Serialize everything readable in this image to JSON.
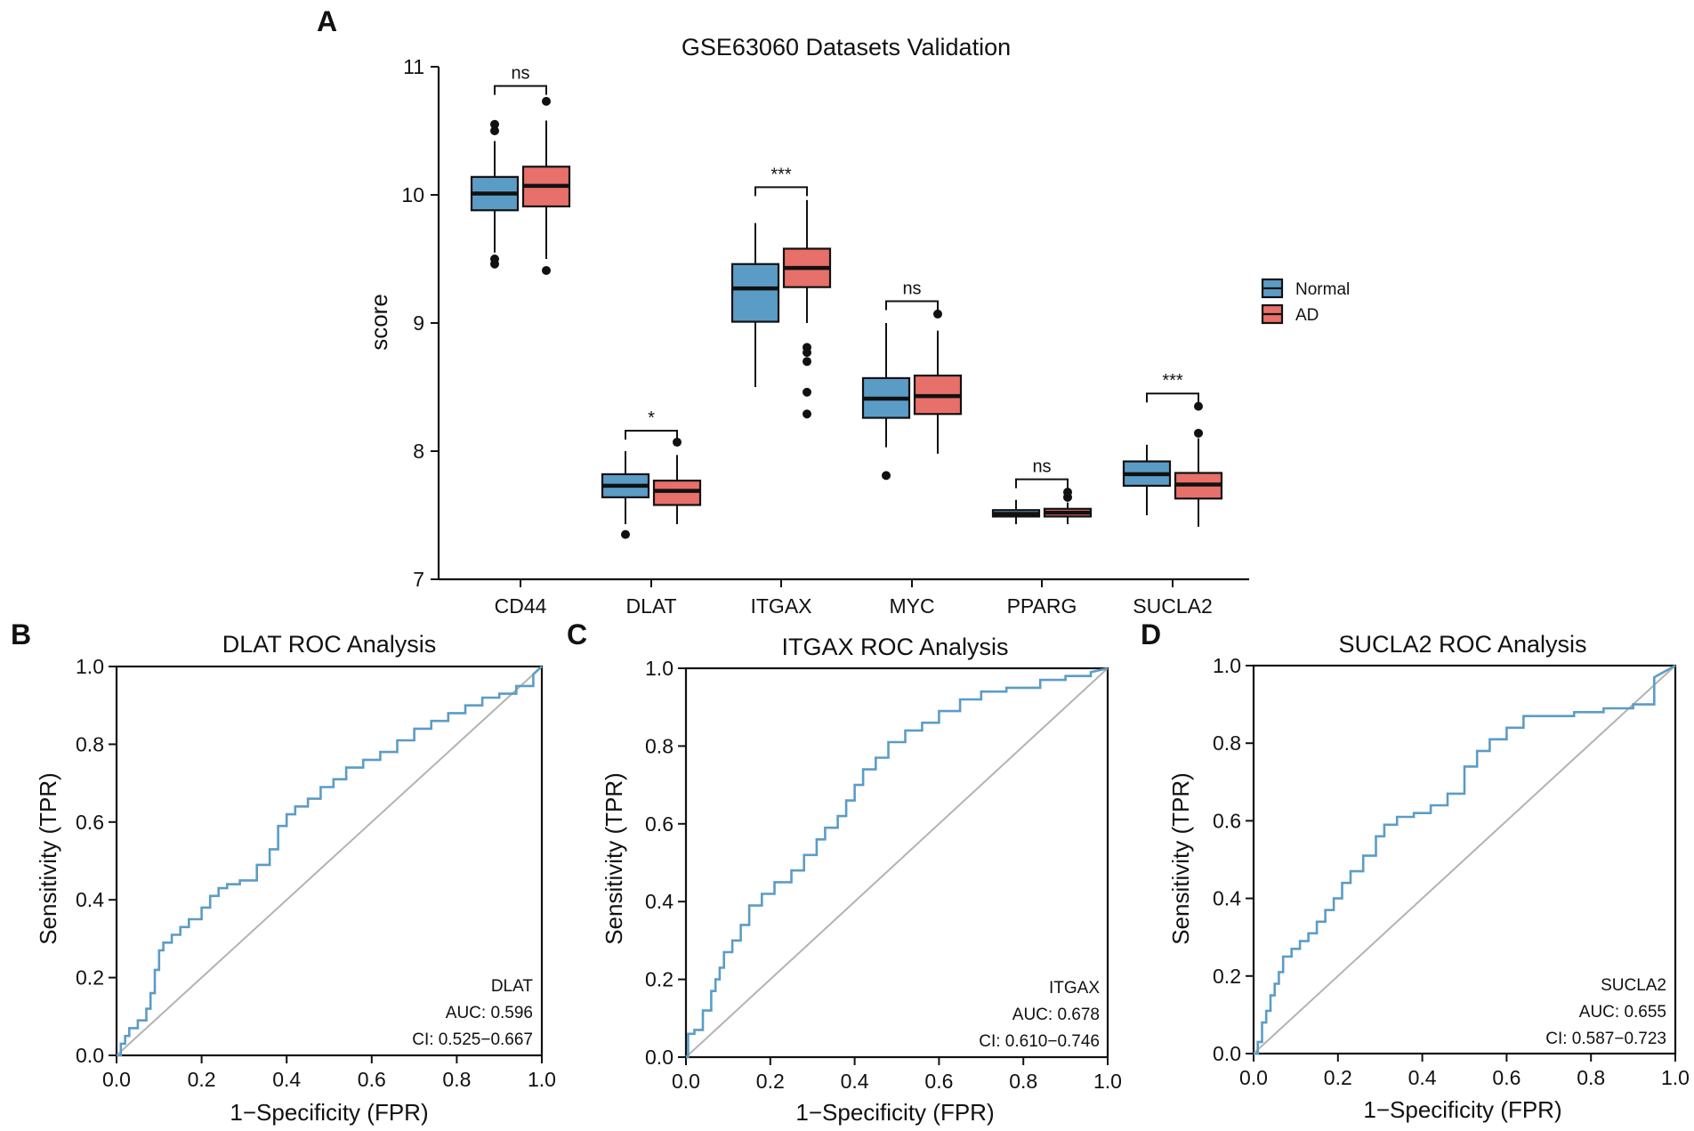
{
  "panels": {
    "A": "A",
    "B": "B",
    "C": "C",
    "D": "D"
  },
  "colors": {
    "normal": "#5b9cc7",
    "ad": "#e8706a",
    "roc_line": "#5b9cc7",
    "diagonal": "#b3b3b3",
    "axis": "#111111"
  },
  "chart_data": [
    {
      "type": "box",
      "panel": "A",
      "title": "GSE63060 Datasets Validation",
      "xlabel": "",
      "ylabel": "score",
      "ylim": [
        7,
        11
      ],
      "yticks": [
        7,
        8,
        9,
        10,
        11
      ],
      "categories": [
        "CD44",
        "DLAT",
        "ITGAX",
        "MYC",
        "PPARG",
        "SUCLA2"
      ],
      "legend": [
        "Normal",
        "AD"
      ],
      "legend_position": "right",
      "series": [
        {
          "name": "Normal",
          "boxes": [
            {
              "q1": 9.88,
              "median": 10.01,
              "q3": 10.14,
              "whisker_low": 9.55,
              "whisker_high": 10.42,
              "outliers": [
                10.55,
                10.5,
                9.5,
                9.46
              ]
            },
            {
              "q1": 7.64,
              "median": 7.73,
              "q3": 7.82,
              "whisker_low": 7.43,
              "whisker_high": 8.0,
              "outliers": [
                7.35
              ]
            },
            {
              "q1": 9.01,
              "median": 9.27,
              "q3": 9.46,
              "whisker_low": 8.5,
              "whisker_high": 9.78,
              "outliers": []
            },
            {
              "q1": 8.26,
              "median": 8.41,
              "q3": 8.57,
              "whisker_low": 8.03,
              "whisker_high": 9.0,
              "outliers": [
                7.81
              ]
            },
            {
              "q1": 7.49,
              "median": 7.51,
              "q3": 7.54,
              "whisker_low": 7.43,
              "whisker_high": 7.62,
              "outliers": []
            },
            {
              "q1": 7.73,
              "median": 7.82,
              "q3": 7.92,
              "whisker_low": 7.5,
              "whisker_high": 8.05,
              "outliers": []
            }
          ]
        },
        {
          "name": "AD",
          "boxes": [
            {
              "q1": 9.91,
              "median": 10.07,
              "q3": 10.22,
              "whisker_low": 9.5,
              "whisker_high": 10.58,
              "outliers": [
                10.73,
                9.41
              ]
            },
            {
              "q1": 7.58,
              "median": 7.69,
              "q3": 7.77,
              "whisker_low": 7.43,
              "whisker_high": 7.97,
              "outliers": [
                8.07
              ]
            },
            {
              "q1": 9.28,
              "median": 9.43,
              "q3": 9.58,
              "whisker_low": 9.0,
              "whisker_high": 9.96,
              "outliers": [
                8.81,
                8.77,
                8.7,
                8.46,
                8.29
              ]
            },
            {
              "q1": 8.29,
              "median": 8.43,
              "q3": 8.59,
              "whisker_low": 7.98,
              "whisker_high": 8.94,
              "outliers": [
                9.07
              ]
            },
            {
              "q1": 7.49,
              "median": 7.52,
              "q3": 7.55,
              "whisker_low": 7.43,
              "whisker_high": 7.6,
              "outliers": [
                7.64,
                7.68
              ]
            },
            {
              "q1": 7.63,
              "median": 7.74,
              "q3": 7.83,
              "whisker_low": 7.41,
              "whisker_high": 8.1,
              "outliers": [
                8.14,
                8.35
              ]
            }
          ]
        }
      ],
      "significance": [
        {
          "category": "CD44",
          "label": "ns",
          "y": 10.85
        },
        {
          "category": "DLAT",
          "label": "*",
          "y": 8.16
        },
        {
          "category": "ITGAX",
          "label": "***",
          "y": 10.06
        },
        {
          "category": "MYC",
          "label": "ns",
          "y": 9.17
        },
        {
          "category": "PPARG",
          "label": "ns",
          "y": 7.78
        },
        {
          "category": "SUCLA2",
          "label": "***",
          "y": 8.45
        }
      ]
    },
    {
      "type": "line",
      "panel": "B",
      "title": "DLAT ROC Analysis",
      "xlabel": "1−Specificity (FPR)",
      "ylabel": "Sensitivity (TPR)",
      "xlim": [
        0,
        1
      ],
      "ylim": [
        0,
        1
      ],
      "xticks": [
        "0.0",
        "0.2",
        "0.4",
        "0.6",
        "0.8",
        "1.0"
      ],
      "yticks": [
        "0.0",
        "0.2",
        "0.4",
        "0.6",
        "0.8",
        "1.0"
      ],
      "annotation": [
        "DLAT",
        "AUC: 0.596",
        "CI: 0.525−0.667"
      ],
      "auc": 0.596,
      "ci": [
        0.525,
        0.667
      ],
      "x": [
        0,
        0.01,
        0.01,
        0.02,
        0.02,
        0.03,
        0.03,
        0.05,
        0.05,
        0.07,
        0.07,
        0.08,
        0.08,
        0.09,
        0.09,
        0.1,
        0.1,
        0.11,
        0.11,
        0.13,
        0.13,
        0.15,
        0.15,
        0.17,
        0.17,
        0.2,
        0.2,
        0.22,
        0.22,
        0.24,
        0.24,
        0.26,
        0.26,
        0.29,
        0.29,
        0.33,
        0.33,
        0.36,
        0.36,
        0.38,
        0.38,
        0.4,
        0.4,
        0.42,
        0.42,
        0.45,
        0.45,
        0.48,
        0.48,
        0.51,
        0.51,
        0.54,
        0.54,
        0.58,
        0.58,
        0.62,
        0.62,
        0.66,
        0.66,
        0.7,
        0.7,
        0.74,
        0.74,
        0.78,
        0.78,
        0.82,
        0.82,
        0.86,
        0.86,
        0.9,
        0.9,
        0.94,
        0.94,
        0.98,
        0.98,
        1.0
      ],
      "y": [
        0,
        0,
        0.03,
        0.03,
        0.05,
        0.05,
        0.07,
        0.07,
        0.09,
        0.09,
        0.12,
        0.12,
        0.16,
        0.16,
        0.22,
        0.22,
        0.27,
        0.27,
        0.29,
        0.29,
        0.31,
        0.31,
        0.33,
        0.33,
        0.35,
        0.35,
        0.38,
        0.38,
        0.41,
        0.41,
        0.43,
        0.43,
        0.44,
        0.44,
        0.45,
        0.45,
        0.49,
        0.49,
        0.53,
        0.53,
        0.59,
        0.59,
        0.62,
        0.62,
        0.64,
        0.64,
        0.66,
        0.66,
        0.69,
        0.69,
        0.71,
        0.71,
        0.74,
        0.74,
        0.76,
        0.76,
        0.78,
        0.78,
        0.81,
        0.81,
        0.84,
        0.84,
        0.86,
        0.86,
        0.88,
        0.88,
        0.9,
        0.9,
        0.92,
        0.92,
        0.93,
        0.93,
        0.95,
        0.95,
        0.98,
        1.0
      ]
    },
    {
      "type": "line",
      "panel": "C",
      "title": "ITGAX ROC Analysis",
      "xlabel": "1−Specificity (FPR)",
      "ylabel": "Sensitivity (TPR)",
      "xlim": [
        0,
        1
      ],
      "ylim": [
        0,
        1
      ],
      "xticks": [
        "0.0",
        "0.2",
        "0.4",
        "0.6",
        "0.8",
        "1.0"
      ],
      "yticks": [
        "0.0",
        "0.2",
        "0.4",
        "0.6",
        "0.8",
        "1.0"
      ],
      "annotation": [
        "ITGAX",
        "AUC: 0.678",
        "CI: 0.610−0.746"
      ],
      "auc": 0.678,
      "ci": [
        0.61,
        0.746
      ],
      "x": [
        0,
        0.005,
        0.005,
        0.02,
        0.02,
        0.04,
        0.04,
        0.06,
        0.06,
        0.07,
        0.07,
        0.08,
        0.08,
        0.09,
        0.09,
        0.11,
        0.11,
        0.13,
        0.13,
        0.15,
        0.15,
        0.18,
        0.18,
        0.21,
        0.21,
        0.25,
        0.25,
        0.28,
        0.28,
        0.31,
        0.31,
        0.33,
        0.33,
        0.36,
        0.36,
        0.38,
        0.38,
        0.4,
        0.4,
        0.42,
        0.42,
        0.45,
        0.45,
        0.48,
        0.48,
        0.52,
        0.52,
        0.56,
        0.56,
        0.6,
        0.6,
        0.65,
        0.65,
        0.7,
        0.7,
        0.76,
        0.76,
        0.84,
        0.84,
        0.9,
        0.9,
        0.96,
        0.96,
        1.0
      ],
      "y": [
        0,
        0,
        0.06,
        0.06,
        0.07,
        0.07,
        0.12,
        0.12,
        0.17,
        0.17,
        0.2,
        0.2,
        0.23,
        0.23,
        0.27,
        0.27,
        0.3,
        0.3,
        0.34,
        0.34,
        0.39,
        0.39,
        0.42,
        0.42,
        0.45,
        0.45,
        0.48,
        0.48,
        0.52,
        0.52,
        0.56,
        0.56,
        0.59,
        0.59,
        0.62,
        0.62,
        0.66,
        0.66,
        0.7,
        0.7,
        0.74,
        0.74,
        0.77,
        0.77,
        0.81,
        0.81,
        0.84,
        0.84,
        0.86,
        0.86,
        0.89,
        0.89,
        0.92,
        0.92,
        0.94,
        0.94,
        0.95,
        0.95,
        0.97,
        0.97,
        0.98,
        0.98,
        0.99,
        1.0
      ]
    },
    {
      "type": "line",
      "panel": "D",
      "title": "SUCLA2 ROC Analysis",
      "xlabel": "1−Specificity (FPR)",
      "ylabel": "Sensitivity (TPR)",
      "xlim": [
        0,
        1
      ],
      "ylim": [
        0,
        1
      ],
      "xticks": [
        "0.0",
        "0.2",
        "0.4",
        "0.6",
        "0.8",
        "1.0"
      ],
      "yticks": [
        "0.0",
        "0.2",
        "0.4",
        "0.6",
        "0.8",
        "1.0"
      ],
      "annotation": [
        "SUCLA2",
        "AUC: 0.655",
        "CI: 0.587−0.723"
      ],
      "auc": 0.655,
      "ci": [
        0.587,
        0.723
      ],
      "x": [
        0,
        0.01,
        0.01,
        0.02,
        0.02,
        0.03,
        0.03,
        0.04,
        0.04,
        0.05,
        0.05,
        0.06,
        0.06,
        0.07,
        0.07,
        0.09,
        0.09,
        0.11,
        0.11,
        0.13,
        0.13,
        0.15,
        0.15,
        0.17,
        0.17,
        0.19,
        0.19,
        0.21,
        0.21,
        0.23,
        0.23,
        0.26,
        0.26,
        0.29,
        0.29,
        0.31,
        0.31,
        0.34,
        0.34,
        0.38,
        0.38,
        0.42,
        0.42,
        0.46,
        0.46,
        0.5,
        0.5,
        0.53,
        0.53,
        0.56,
        0.56,
        0.6,
        0.6,
        0.64,
        0.64,
        0.7,
        0.7,
        0.76,
        0.76,
        0.83,
        0.83,
        0.9,
        0.9,
        0.95,
        0.95,
        1.0
      ],
      "y": [
        0,
        0,
        0.03,
        0.03,
        0.08,
        0.08,
        0.11,
        0.11,
        0.15,
        0.15,
        0.18,
        0.18,
        0.21,
        0.21,
        0.25,
        0.25,
        0.27,
        0.27,
        0.29,
        0.29,
        0.31,
        0.31,
        0.34,
        0.34,
        0.37,
        0.37,
        0.4,
        0.4,
        0.44,
        0.44,
        0.47,
        0.47,
        0.51,
        0.51,
        0.56,
        0.56,
        0.59,
        0.59,
        0.61,
        0.61,
        0.62,
        0.62,
        0.64,
        0.64,
        0.67,
        0.67,
        0.74,
        0.74,
        0.78,
        0.78,
        0.81,
        0.81,
        0.84,
        0.84,
        0.87,
        0.87,
        0.87,
        0.87,
        0.88,
        0.88,
        0.89,
        0.89,
        0.9,
        0.9,
        0.97,
        1.0
      ]
    }
  ]
}
